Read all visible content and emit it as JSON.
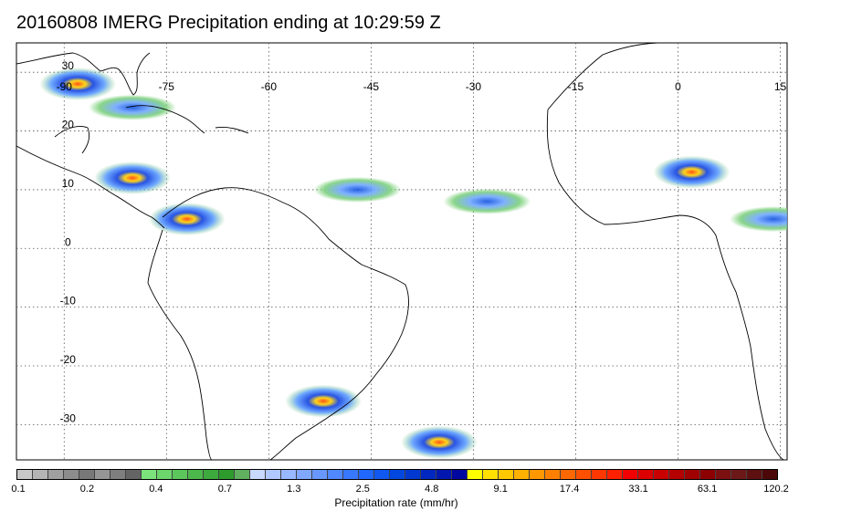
{
  "title": "20160808 IMERG Precipitation ending at 10:29:59 Z",
  "map": {
    "lon_range": [
      -97,
      16
    ],
    "lat_range": [
      -36,
      35
    ],
    "lon_ticks": [
      -90,
      -75,
      -60,
      -45,
      -30,
      -15,
      0,
      15
    ],
    "lon_tick_labels": [
      "-90",
      "-75",
      "-60",
      "-45",
      "-30",
      "-15",
      "0",
      "15"
    ],
    "lat_ticks": [
      30,
      20,
      10,
      0,
      -10,
      -20,
      -30
    ],
    "lat_tick_labels": [
      "30",
      "20",
      "10",
      "0",
      "-10",
      "-20",
      "-30"
    ],
    "grid": "dotted",
    "coastline_color": "#000000"
  },
  "precip_regions": [
    {
      "name": "gulf-of-mexico",
      "lon": -88,
      "lat": 28,
      "level": "heavy"
    },
    {
      "name": "caribbean",
      "lon": -80,
      "lat": 12,
      "level": "heavy"
    },
    {
      "name": "colombia",
      "lon": -72,
      "lat": 5,
      "level": "heavy"
    },
    {
      "name": "atlantic-north",
      "lon": -80,
      "lat": 24,
      "level": "moderate"
    },
    {
      "name": "itcz-west",
      "lon": -47,
      "lat": 10,
      "level": "moderate"
    },
    {
      "name": "itcz-east",
      "lon": -28,
      "lat": 8,
      "level": "moderate"
    },
    {
      "name": "sahel",
      "lon": 2,
      "lat": 13,
      "level": "heavy"
    },
    {
      "name": "central-africa",
      "lon": 14,
      "lat": 5,
      "level": "moderate"
    },
    {
      "name": "south-brazil",
      "lon": -52,
      "lat": -26,
      "level": "heavy"
    },
    {
      "name": "south-atlantic",
      "lon": -35,
      "lat": -33,
      "level": "heavy"
    }
  ],
  "colorbar": {
    "colors": [
      "#c8c8c8",
      "#b4b4b4",
      "#a0a0a0",
      "#8c8c8c",
      "#787878",
      "#969696",
      "#7e7e7e",
      "#646464",
      "#7ce37c",
      "#6cd56c",
      "#5cc65c",
      "#4cb84c",
      "#3caa3c",
      "#2d9c2d",
      "#60b060",
      "#c8d8ff",
      "#b0c8ff",
      "#98b8ff",
      "#80a8ff",
      "#6898ff",
      "#5088ff",
      "#3878ff",
      "#2068ff",
      "#1058f0",
      "#0048e0",
      "#0038d0",
      "#0028c0",
      "#0018b0",
      "#0008a0",
      "#ffff00",
      "#ffe000",
      "#ffc800",
      "#ffb000",
      "#ff9800",
      "#ff8000",
      "#ff6800",
      "#ff5000",
      "#ff3800",
      "#ff2000",
      "#f00000",
      "#dc0000",
      "#c80000",
      "#b40000",
      "#a00000",
      "#8c0000",
      "#7c1010",
      "#6c1818",
      "#5c1010",
      "#4c0808"
    ],
    "tick_labels": [
      "0.1",
      "0.2",
      "0.4",
      "0.7",
      "1.3",
      "2.5",
      "4.8",
      "9.1",
      "17.4",
      "33.1",
      "63.1",
      "120.2"
    ],
    "caption": "Precipitation rate (mm/hr)"
  }
}
